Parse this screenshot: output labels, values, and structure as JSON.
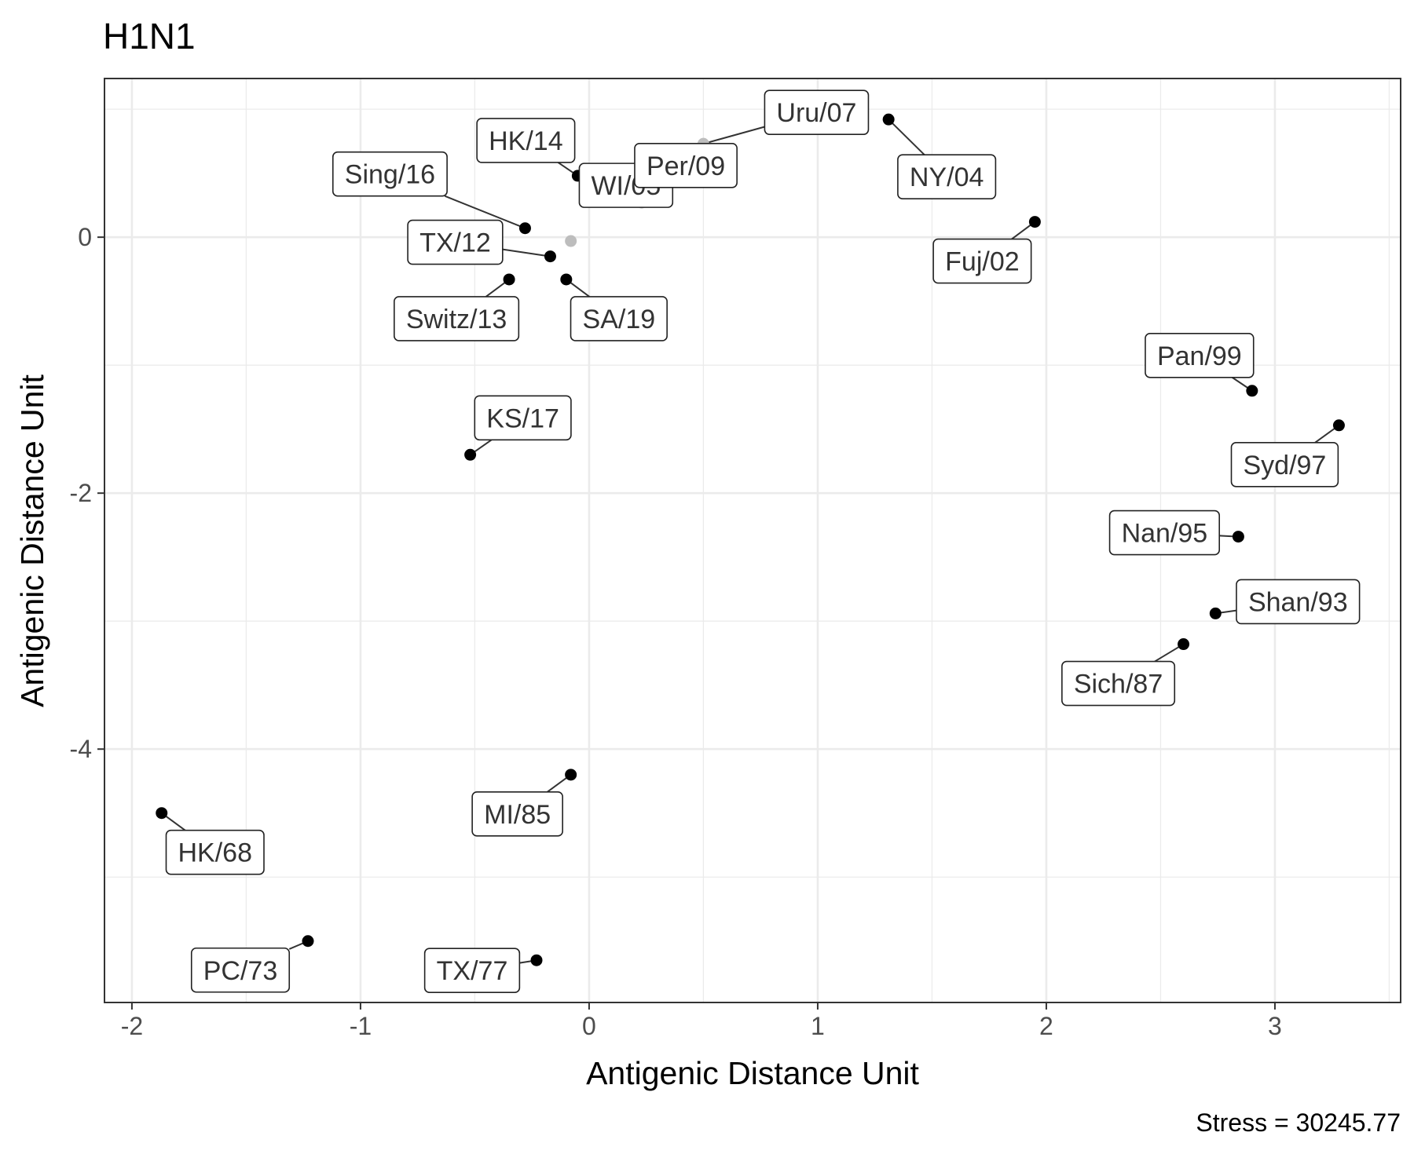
{
  "chart_data": {
    "type": "scatter",
    "title": "H1N1",
    "xlabel": "Antigenic Distance Unit",
    "ylabel": "Antigenic Distance Unit",
    "caption": "Stress = 30245.77",
    "xlim": [
      -2.12,
      3.55
    ],
    "ylim": [
      -5.98,
      1.24
    ],
    "x_ticks": [
      -2,
      -1,
      0,
      1,
      2,
      3
    ],
    "x_tick_labels": [
      "-2",
      "-1",
      "0",
      "1",
      "2",
      "3"
    ],
    "y_ticks": [
      -4,
      -2,
      0
    ],
    "y_tick_labels": [
      "-4",
      "-2",
      "0"
    ],
    "grid": true,
    "colors": {
      "point": "#000000",
      "point_grey": "#bdbdbd",
      "grid_major": "#ebebeb",
      "panel_border": "#333333",
      "label_text": "#333333"
    },
    "points": [
      {
        "label": "HK/68",
        "x": -1.87,
        "y": -4.5,
        "color": "black"
      },
      {
        "label": "PC/73",
        "x": -1.23,
        "y": -5.5,
        "color": "black"
      },
      {
        "label": "TX/77",
        "x": -0.23,
        "y": -5.65,
        "color": "black"
      },
      {
        "label": "MI/85",
        "x": -0.08,
        "y": -4.2,
        "color": "black"
      },
      {
        "label": "Sich/87",
        "x": 2.6,
        "y": -3.18,
        "color": "black"
      },
      {
        "label": "Shan/93",
        "x": 2.74,
        "y": -2.94,
        "color": "black"
      },
      {
        "label": "Nan/95",
        "x": 2.84,
        "y": -2.34,
        "color": "black"
      },
      {
        "label": "Syd/97",
        "x": 3.28,
        "y": -1.47,
        "color": "black"
      },
      {
        "label": "Pan/99",
        "x": 2.9,
        "y": -1.2,
        "color": "black"
      },
      {
        "label": "Fuj/02",
        "x": 1.95,
        "y": 0.12,
        "color": "black"
      },
      {
        "label": "NY/04",
        "x": 1.31,
        "y": 0.92,
        "color": "black"
      },
      {
        "label": "WI/05",
        "x": 0.23,
        "y": 0.27,
        "color": "grey"
      },
      {
        "label": "Uru/07",
        "x": 0.5,
        "y": 0.73,
        "color": "grey"
      },
      {
        "label": "Per/09",
        "x": 0.32,
        "y": 0.45,
        "color": "grey"
      },
      {
        "label": "TX/12",
        "x": -0.17,
        "y": -0.15,
        "color": "black"
      },
      {
        "label": "Switz/13",
        "x": -0.35,
        "y": -0.33,
        "color": "black"
      },
      {
        "label": "HK/14",
        "x": -0.05,
        "y": 0.48,
        "color": "black"
      },
      {
        "label": "Sing/16",
        "x": -0.28,
        "y": 0.07,
        "color": "black"
      },
      {
        "label": "KS/17",
        "x": -0.52,
        "y": -1.7,
        "color": "black"
      },
      {
        "label": "SA/19",
        "x": -0.1,
        "y": -0.33,
        "color": "black"
      },
      {
        "label": "",
        "x": -0.08,
        "y": -0.03,
        "color": "grey"
      }
    ]
  }
}
